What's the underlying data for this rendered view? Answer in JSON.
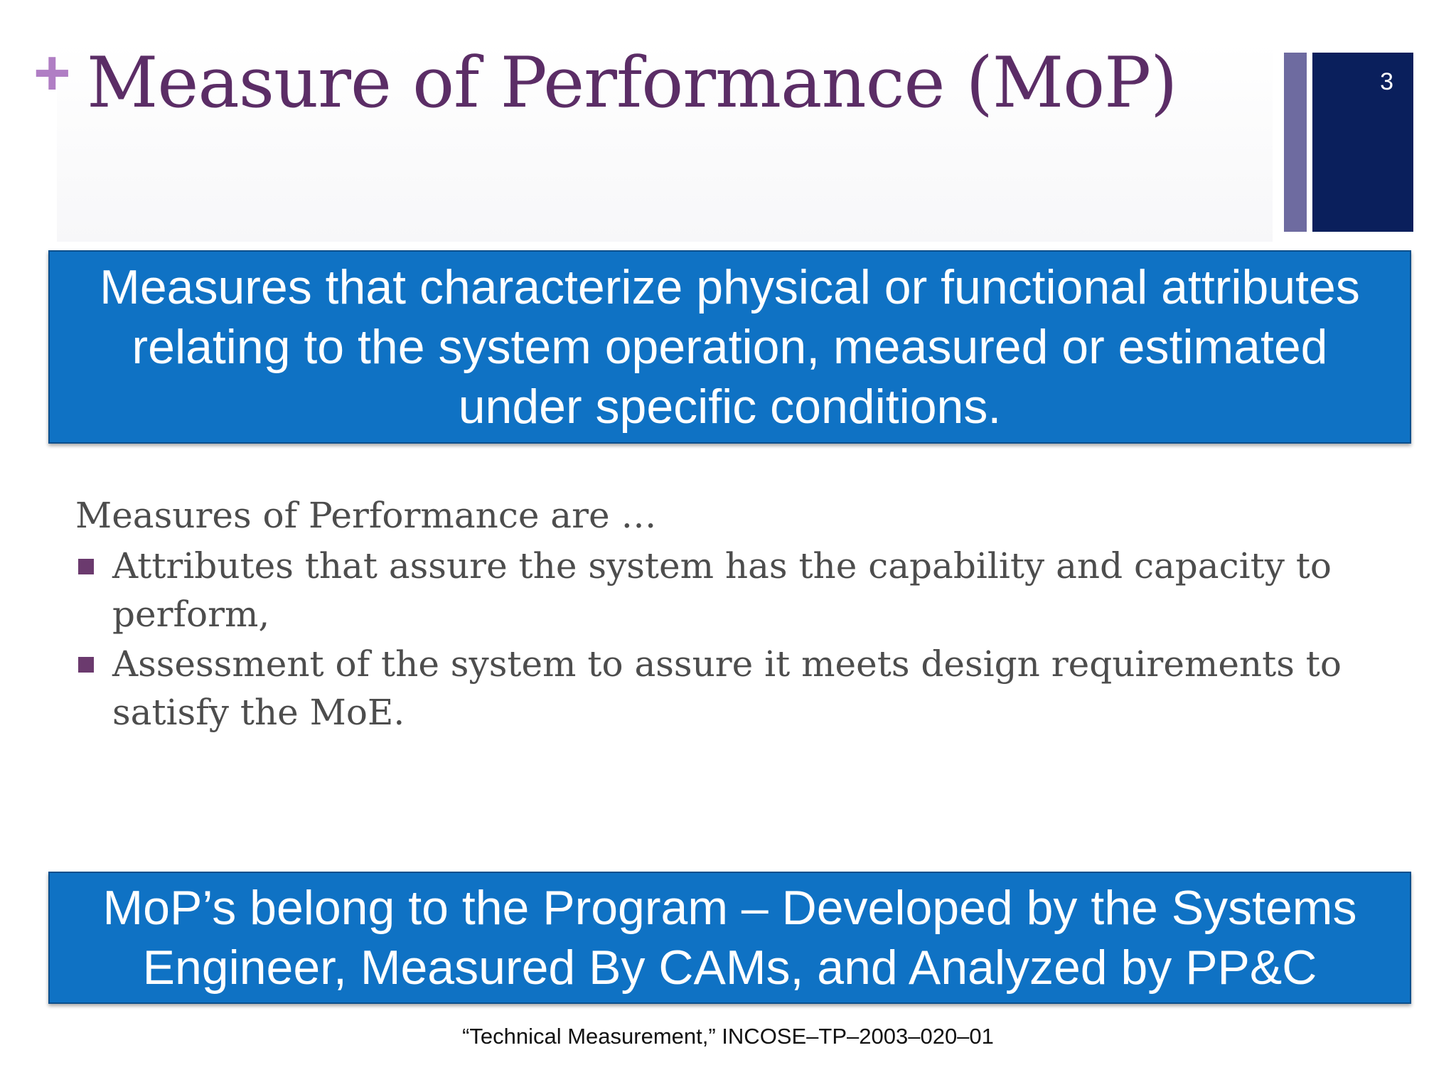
{
  "slide": {
    "title": "Measure of Performance (MoP)",
    "page_number": "3",
    "plus_symbol": "+"
  },
  "callouts": {
    "definition": "Measures that characterize physical or functional attributes relating to the system operation, measured or estimated under specific conditions.",
    "ownership": "MoP’s belong to the Program – Developed by the Systems Engineer, Measured By CAMs, and Analyzed by PP&C"
  },
  "body": {
    "intro": "Measures of Performance are …",
    "bullets": [
      "Attributes that assure the system has the capability and capacity to perform,",
      "Assessment of the system to assure it meets design requirements to satisfy the MoE."
    ]
  },
  "citation": "“Technical Measurement,” INCOSE–TP–2003–020–01",
  "colors": {
    "plus": "#b07ec4",
    "title": "#5b2d66",
    "thin_bar": "#6e6ba0",
    "wide_bar": "#0a1f5c",
    "callout_bg": "#0f72c4",
    "callout_border": "#0a4f8c",
    "body_text": "#4d4d4d",
    "bullet": "#6b3a6e"
  },
  "icons": {
    "bullet_marker": "square-bullet-icon"
  }
}
